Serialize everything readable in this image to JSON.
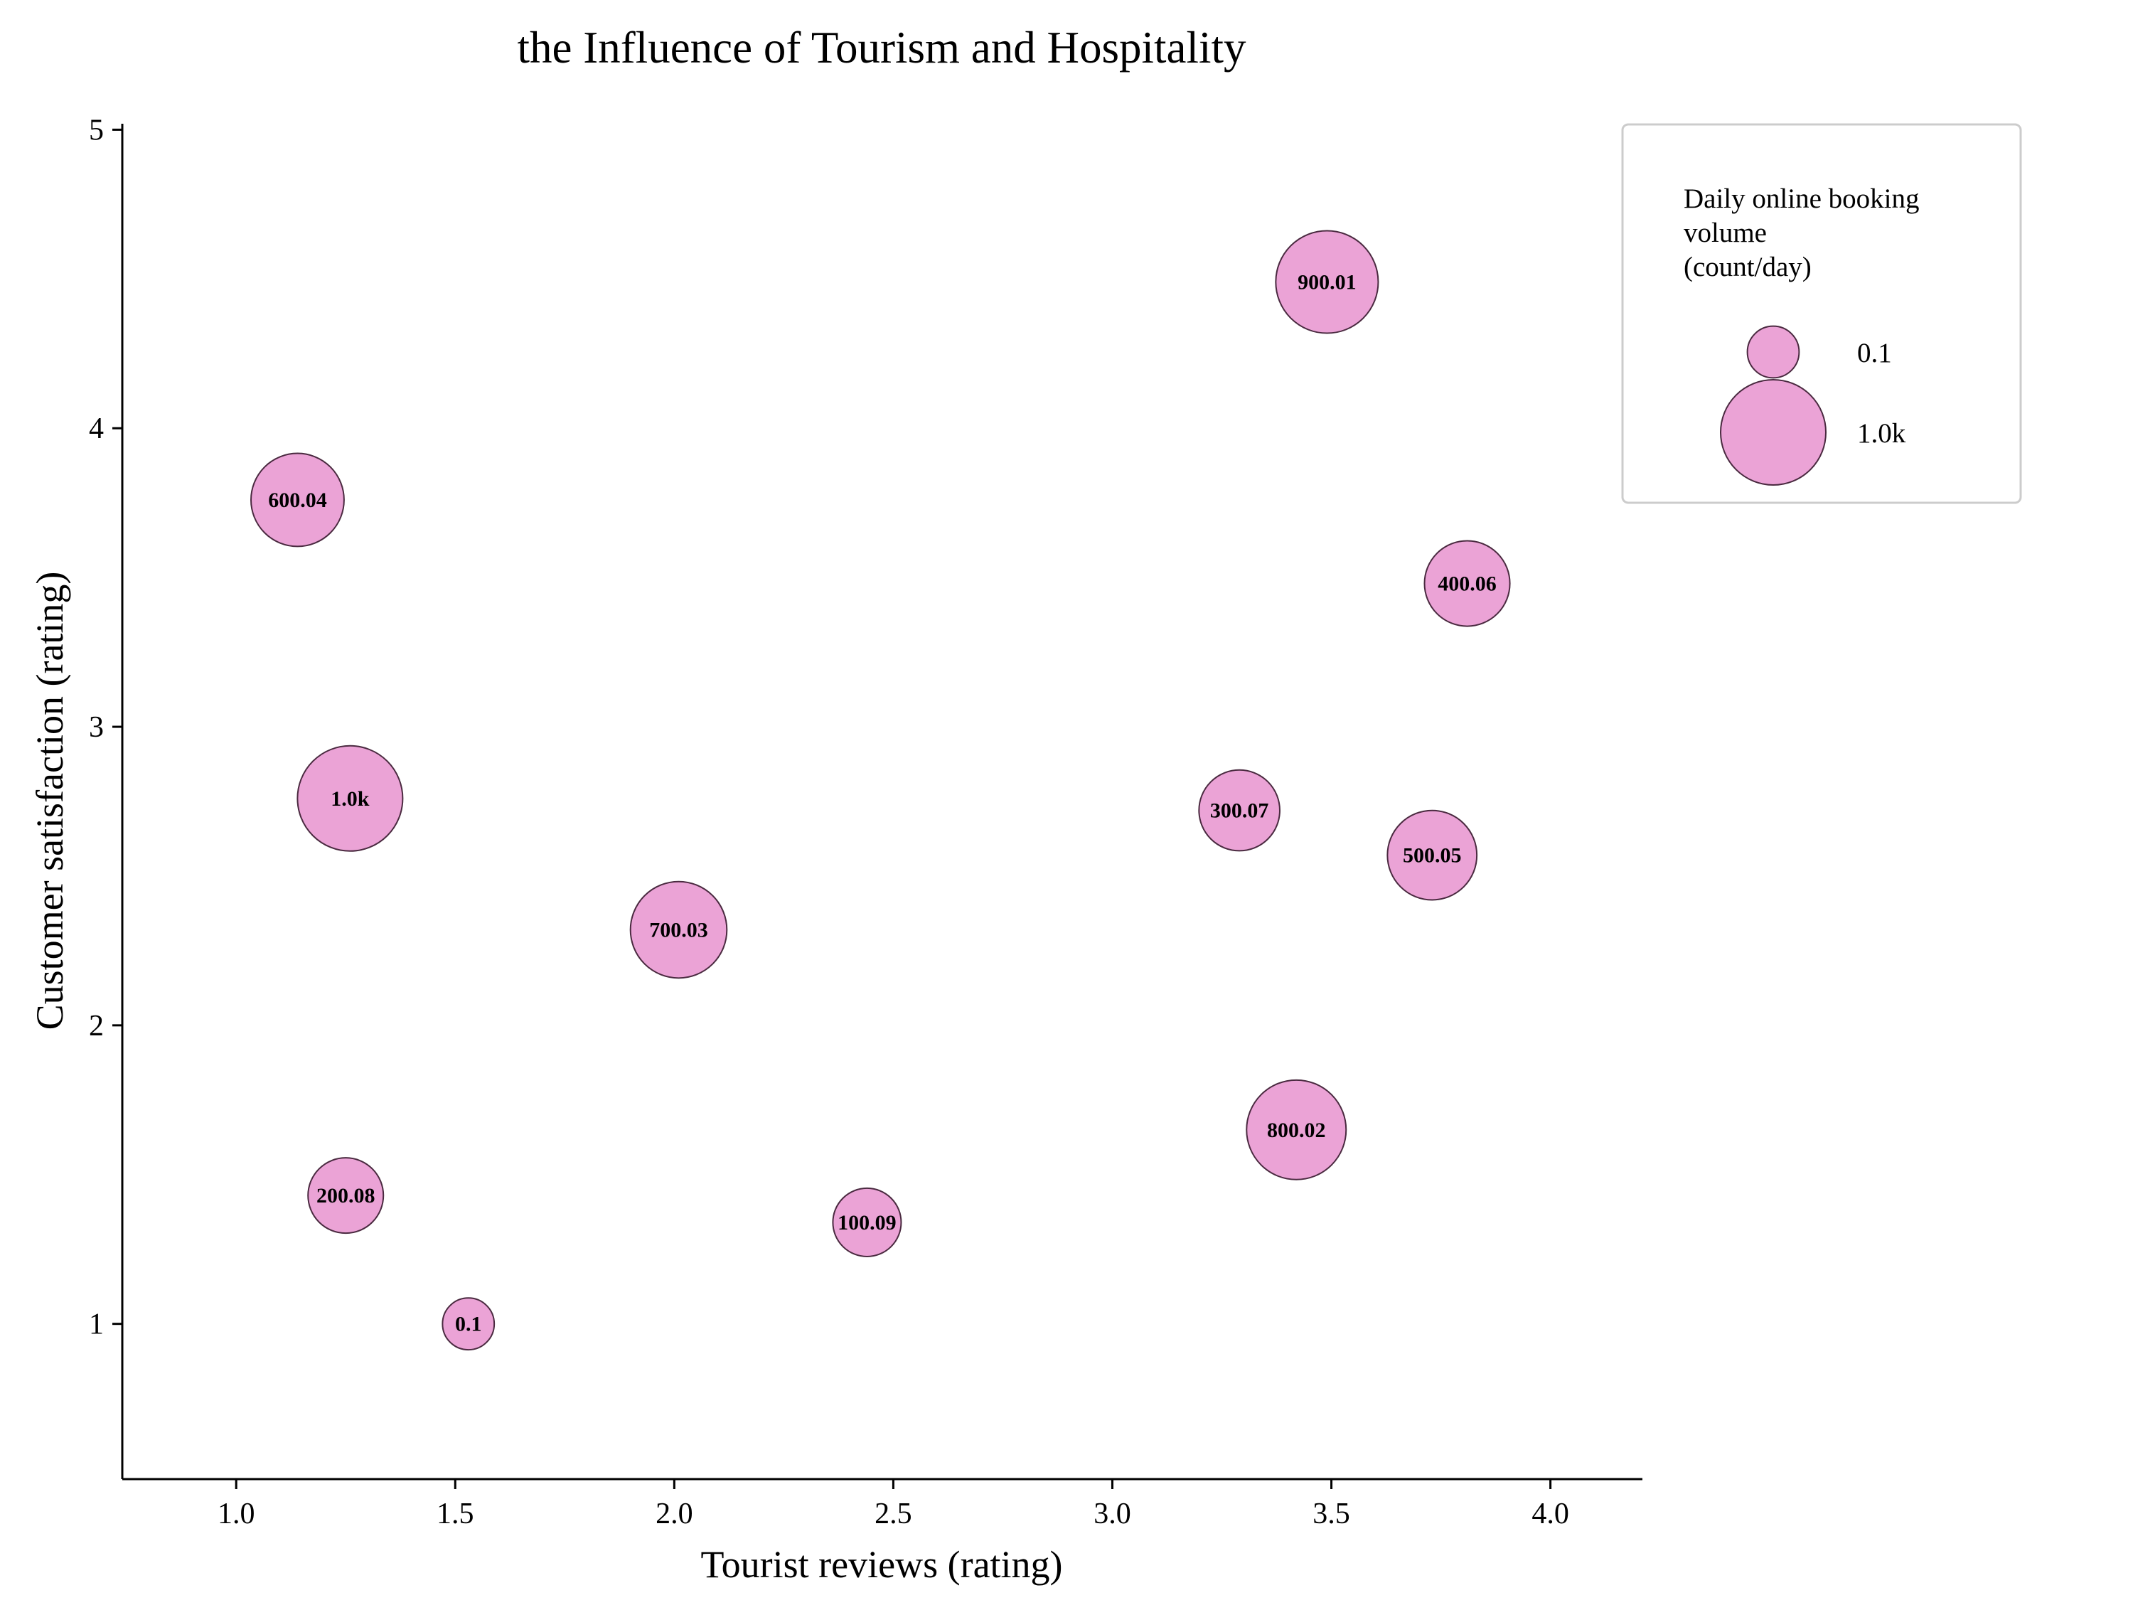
{
  "chart_data": {
    "type": "scatter",
    "title": "the Influence of Tourism and Hospitality",
    "xlabel": "Tourist reviews (rating)",
    "ylabel": "Customer satisfaction (rating)",
    "xlim": [
      0.74,
      4.21
    ],
    "ylim": [
      0.48,
      5.02
    ],
    "x_ticks": [
      "1.0",
      "1.5",
      "2.0",
      "2.5",
      "3.0",
      "3.5",
      "4.0"
    ],
    "y_ticks": [
      "1",
      "2",
      "3",
      "4",
      "5"
    ],
    "grid": false,
    "bubble_color": "#eba3d6",
    "edge_color": "#4a2a40",
    "points": [
      {
        "x": 1.53,
        "y": 1.0,
        "size": 0.1,
        "label": "0.1"
      },
      {
        "x": 2.44,
        "y": 1.34,
        "size": 100.09,
        "label": "100.09"
      },
      {
        "x": 1.25,
        "y": 1.43,
        "size": 200.08,
        "label": "200.08"
      },
      {
        "x": 3.29,
        "y": 2.72,
        "size": 300.07,
        "label": "300.07"
      },
      {
        "x": 3.81,
        "y": 3.48,
        "size": 400.06,
        "label": "400.06"
      },
      {
        "x": 3.73,
        "y": 2.57,
        "size": 500.05,
        "label": "500.05"
      },
      {
        "x": 1.14,
        "y": 3.76,
        "size": 600.04,
        "label": "600.04"
      },
      {
        "x": 2.01,
        "y": 2.32,
        "size": 700.03,
        "label": "700.03"
      },
      {
        "x": 3.42,
        "y": 1.65,
        "size": 800.02,
        "label": "800.02"
      },
      {
        "x": 3.49,
        "y": 4.49,
        "size": 900.01,
        "label": "900.01"
      },
      {
        "x": 1.26,
        "y": 2.76,
        "size": 1000.0,
        "label": "1.0k"
      }
    ],
    "legend": {
      "title_lines": [
        "Daily online booking",
        "volume",
        "(count/day)"
      ],
      "entries": [
        {
          "size": 0.1,
          "label": "0.1"
        },
        {
          "size": 1000.0,
          "label": "1.0k"
        }
      ],
      "placement": "top-right"
    }
  }
}
